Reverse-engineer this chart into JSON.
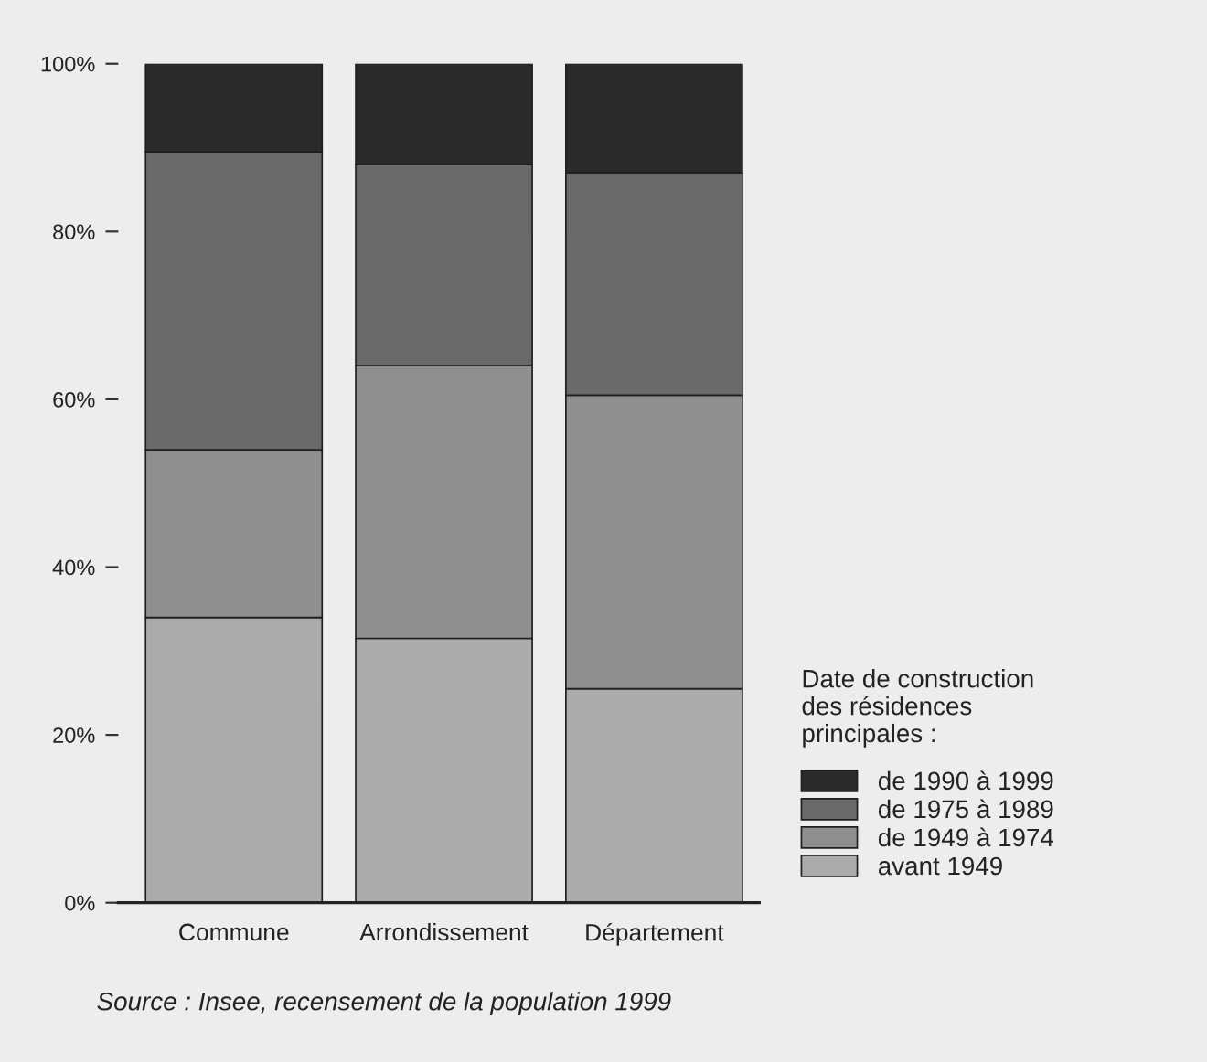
{
  "chart_data": {
    "type": "bar",
    "stacked": true,
    "categories": [
      "Commune",
      "Arrondissement",
      "Département"
    ],
    "series": [
      {
        "name": "avant 1949",
        "color": "#ababab",
        "values": [
          34,
          31.5,
          25.5
        ]
      },
      {
        "name": "de 1949 à 1974",
        "color": "#8f8f8f",
        "values": [
          20,
          32.5,
          35
        ]
      },
      {
        "name": "de 1975 à 1989",
        "color": "#6a6a6a",
        "values": [
          35.5,
          24,
          26.5
        ]
      },
      {
        "name": "de 1990 à 1999",
        "color": "#2a2a2a",
        "values": [
          10.5,
          12,
          13
        ]
      }
    ],
    "ylim": [
      0,
      100
    ],
    "yticks": [
      {
        "value": 0,
        "label": "0%"
      },
      {
        "value": 20,
        "label": "20%"
      },
      {
        "value": 40,
        "label": "40%"
      },
      {
        "value": 60,
        "label": "60%"
      },
      {
        "value": 80,
        "label": "80%"
      },
      {
        "value": 100,
        "label": "100%"
      }
    ],
    "legend_title": "Date de construction\ndes résidences\nprincipales :",
    "legend": "bottom right",
    "grid": false,
    "annotations": [
      "Source : Insee, recensement de la population 1999"
    ]
  }
}
